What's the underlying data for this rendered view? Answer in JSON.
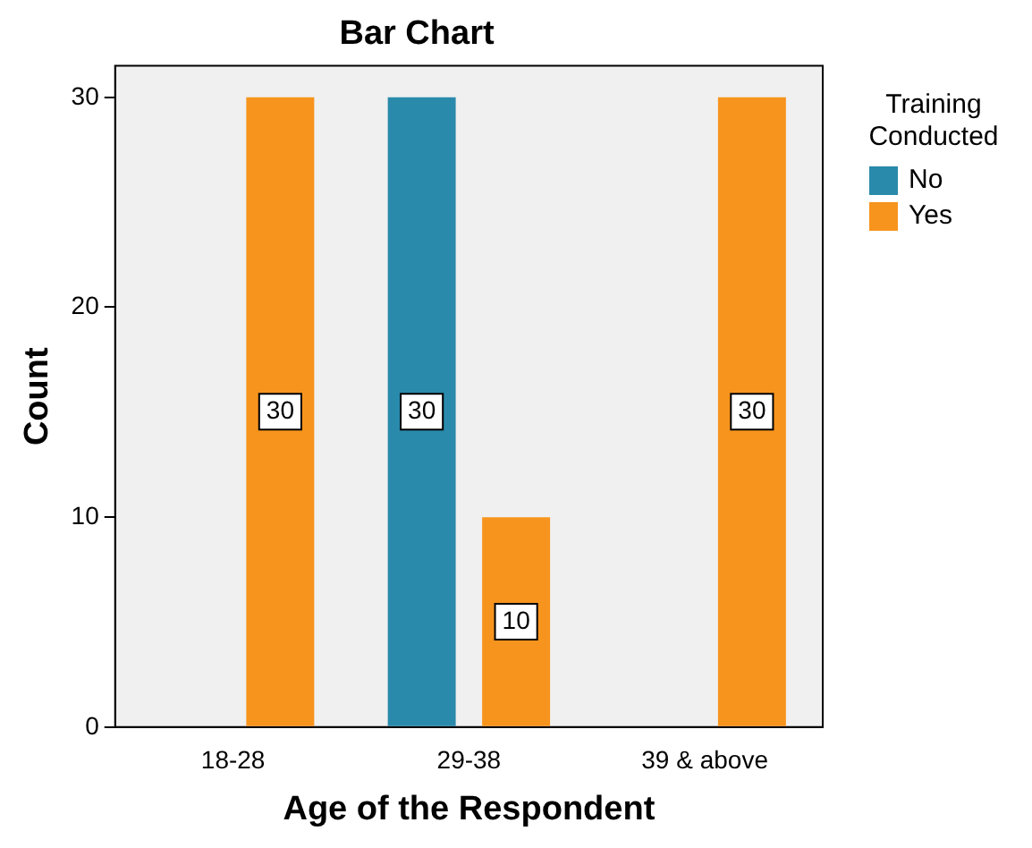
{
  "chart_data": {
    "type": "bar",
    "title": "Bar Chart",
    "xlabel": "Age of the Respondent",
    "ylabel": "Count",
    "legend_title": "Training Conducted",
    "categories": [
      "18-28",
      "29-38",
      "39 & above"
    ],
    "series": [
      {
        "name": "No",
        "color": "#2a8aab",
        "values": [
          null,
          30,
          null
        ]
      },
      {
        "name": "Yes",
        "color": "#f7941d",
        "values": [
          30,
          10,
          30
        ]
      }
    ],
    "ylim": [
      0,
      31.5
    ],
    "yticks": [
      0,
      10,
      20,
      30
    ],
    "grid": false,
    "legend": "right",
    "data_labels": true
  }
}
